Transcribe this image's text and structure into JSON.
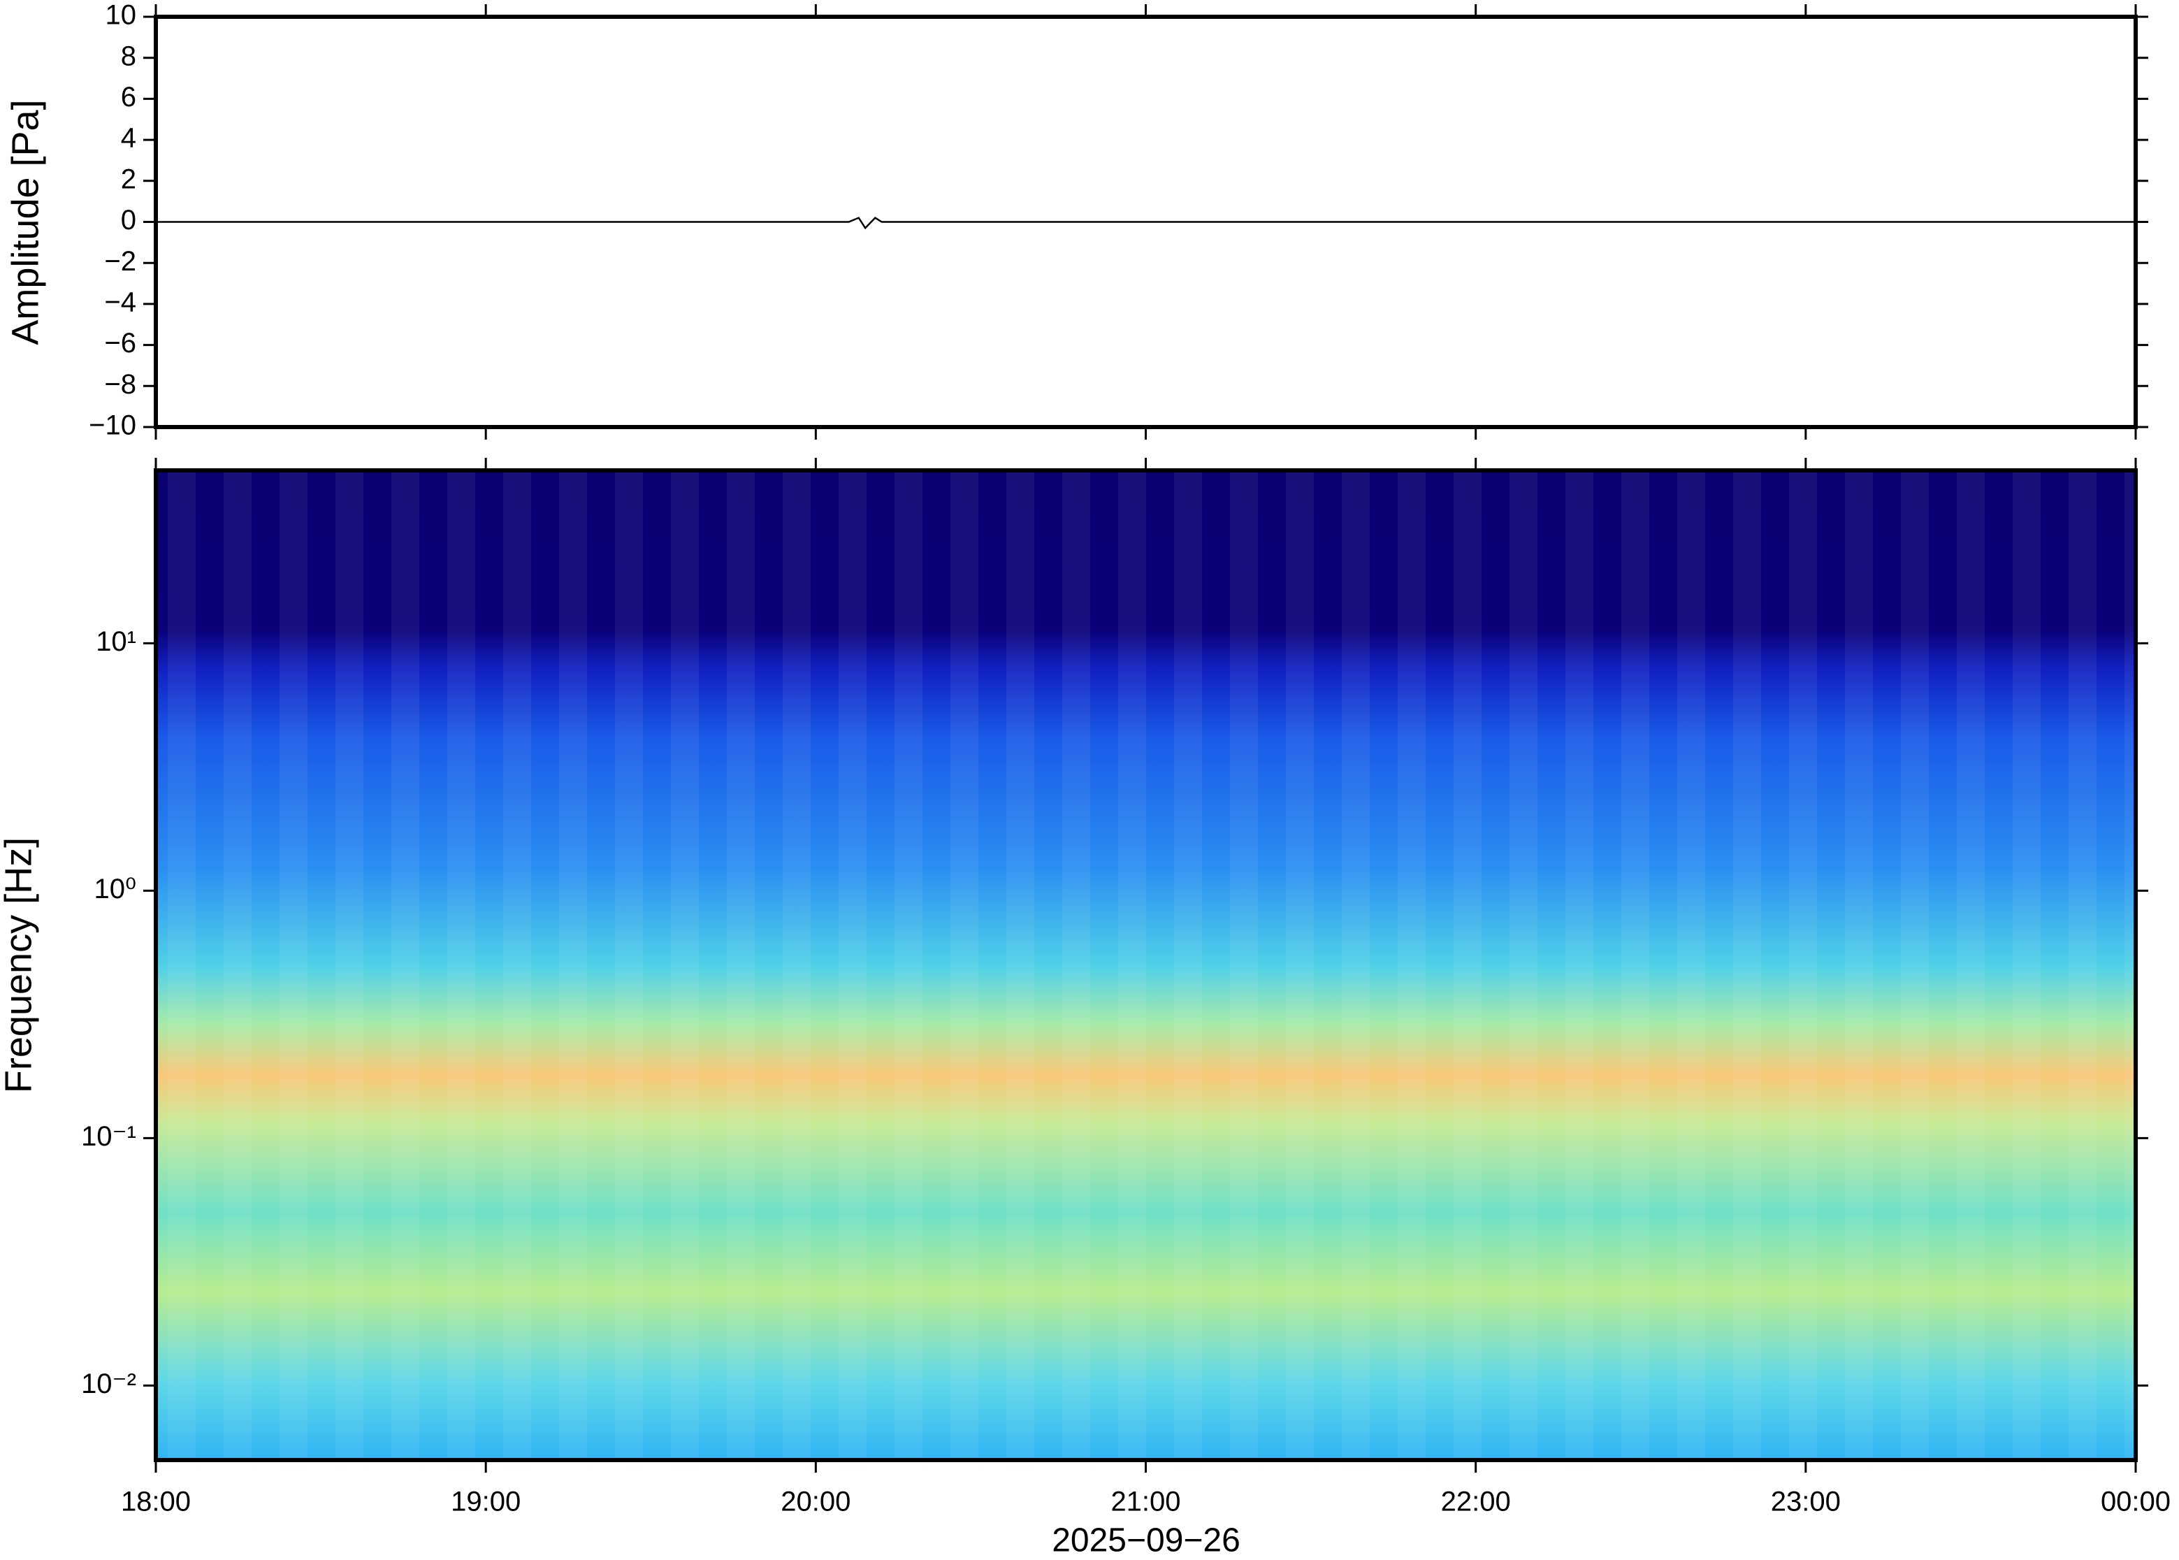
{
  "chart_data": [
    {
      "type": "line",
      "ylabel": "Amplitude [Pa]",
      "xlim": [
        18,
        24
      ],
      "xticks": [
        18,
        19,
        20,
        21,
        22,
        23,
        24
      ],
      "ylim": [
        -10,
        10
      ],
      "yticks": [
        {
          "value": -10,
          "label": "−10"
        },
        {
          "value": -8,
          "label": "−8"
        },
        {
          "value": -6,
          "label": "−6"
        },
        {
          "value": -4,
          "label": "−4"
        },
        {
          "value": -2,
          "label": "−2"
        },
        0,
        2,
        4,
        6,
        8,
        10
      ],
      "series": [
        {
          "color": "#000000",
          "x": [
            18,
            20.1,
            20.13,
            20.15,
            20.18,
            20.2,
            24
          ],
          "values": [
            0,
            0,
            0.2,
            -0.3,
            0.2,
            0,
            0
          ]
        }
      ]
    },
    {
      "type": "spectrogram",
      "ylabel": "Frequency [Hz]",
      "xlabel": "2025−09−26",
      "ylog": true,
      "xlim": [
        18,
        24
      ],
      "xticks": [
        {
          "value": 18,
          "label": "18:00"
        },
        {
          "value": 19,
          "label": "19:00"
        },
        {
          "value": 20,
          "label": "20:00"
        },
        {
          "value": 21,
          "label": "21:00"
        },
        {
          "value": 22,
          "label": "22:00"
        },
        {
          "value": 23,
          "label": "23:00"
        },
        {
          "value": 24,
          "label": "00:00"
        }
      ],
      "ylim": [
        0.005,
        50
      ],
      "yticks": [
        {
          "value": 0.01,
          "label": "10⁻²"
        },
        {
          "value": 0.1,
          "label": "10⁻¹"
        },
        {
          "value": 1,
          "label": "10⁰"
        },
        {
          "value": 10,
          "label": "10¹"
        }
      ]
    }
  ]
}
